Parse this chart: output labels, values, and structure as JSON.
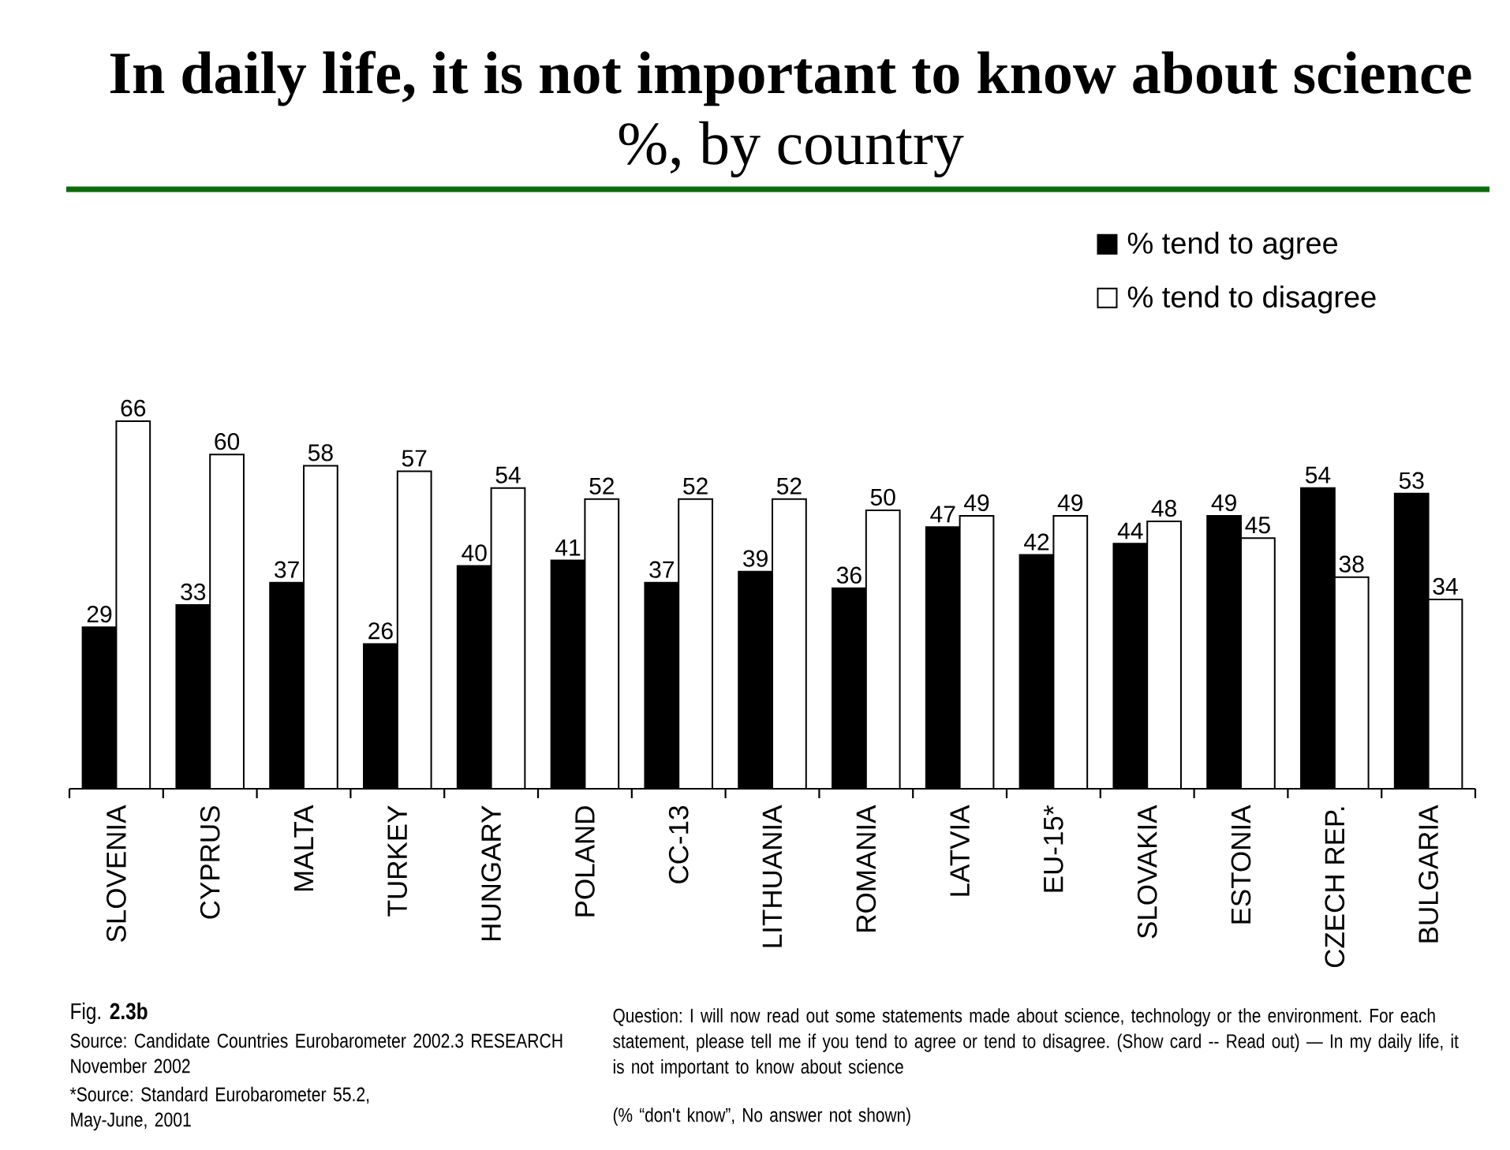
{
  "chart_data": {
    "type": "bar",
    "title": "In daily life, it is not important to know about science",
    "subtitle": "%, by country",
    "categories": [
      "SLOVENIA",
      "CYPRUS",
      "MALTA",
      "TURKEY",
      "HUNGARY",
      "POLAND",
      "CC-13",
      "LITHUANIA",
      "ROMANIA",
      "LATVIA",
      "EU-15*",
      "SLOVAKIA",
      "ESTONIA",
      "CZECH REP.",
      "BULGARIA"
    ],
    "series": [
      {
        "name": "% tend to agree",
        "color": "#000000",
        "values": [
          29,
          33,
          37,
          26,
          40,
          41,
          37,
          39,
          36,
          47,
          42,
          44,
          49,
          54,
          53
        ]
      },
      {
        "name": "% tend to disagree",
        "color": "#ffffff",
        "values": [
          66,
          60,
          58,
          57,
          54,
          52,
          52,
          52,
          50,
          49,
          49,
          48,
          45,
          38,
          34
        ]
      }
    ],
    "data_labels": true,
    "legend": "top right",
    "annotations": [
      "Fig. **2.3b**",
      "Source: Candidate Countries Eurobarometer 2002.3 RESEARCH November  2002",
      "*Source: Standard Eurobarometer 55.2, May-June, 2001",
      "Question:  I will now read out some statements made about science, technology or the environment. For each statement, please tell me if you tend to agree or tend to disagree. (Show card -- Read out) — In my daily life, it is not important to know about science",
      "(% “don't know”, No answer not shown)"
    ]
  }
}
